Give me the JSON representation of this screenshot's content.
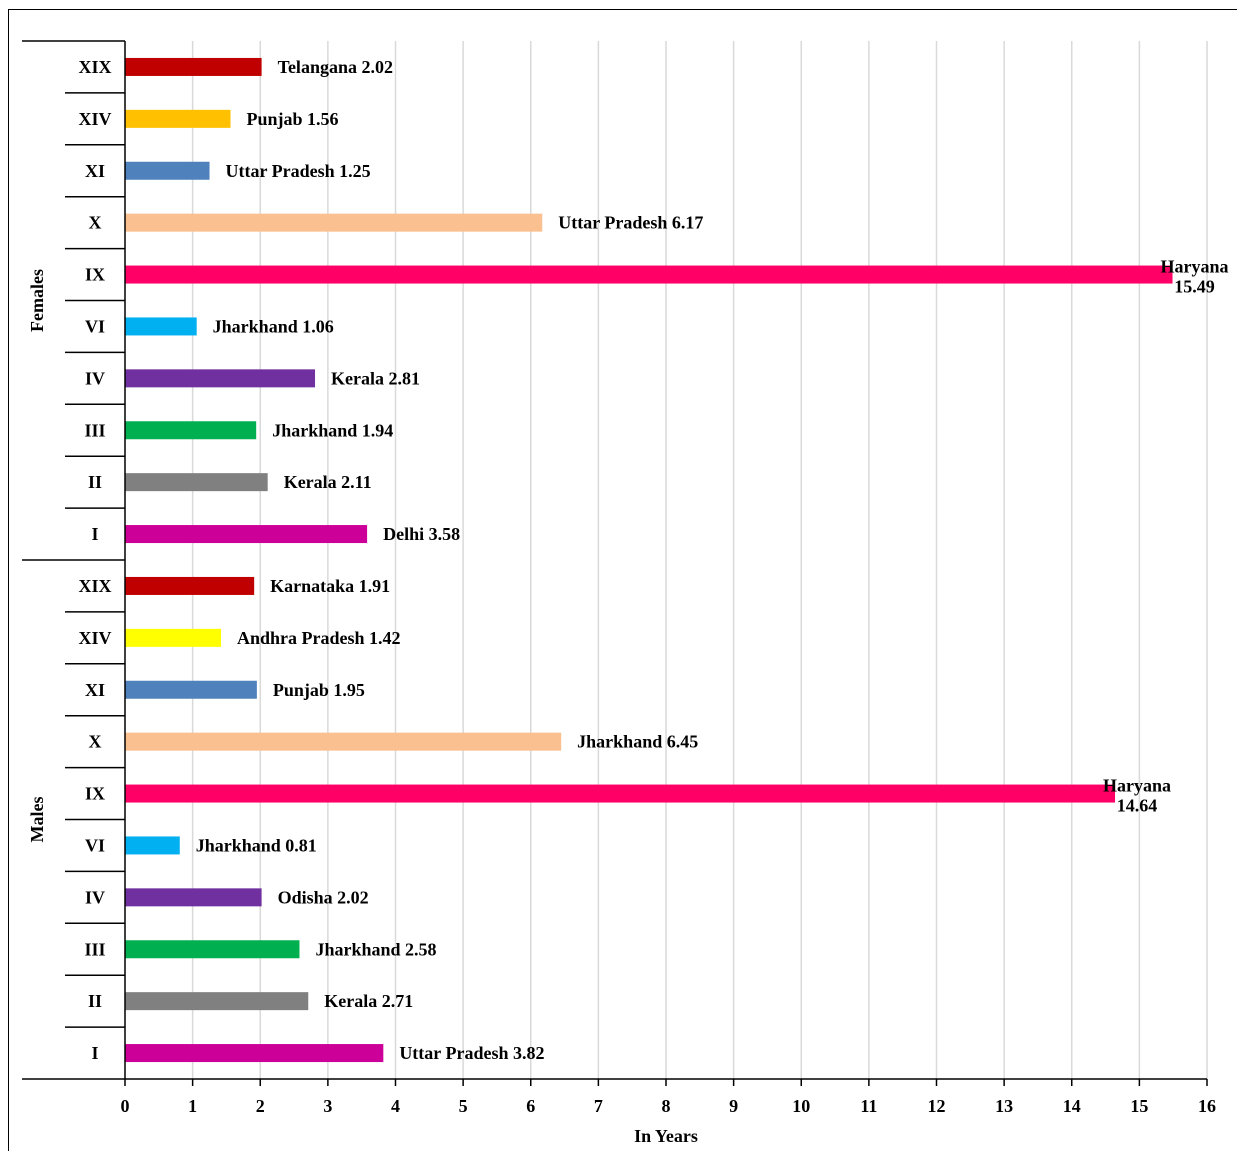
{
  "chart_data": {
    "type": "bar",
    "orientation": "horizontal",
    "xlabel": "In Years",
    "xlim": [
      0,
      16
    ],
    "xticks": [
      0,
      1,
      2,
      3,
      4,
      5,
      6,
      7,
      8,
      9,
      10,
      11,
      12,
      13,
      14,
      15,
      16
    ],
    "grid": true,
    "groups": [
      {
        "name": "Females",
        "categories": [
          "XIX",
          "XIV",
          "XI",
          "X",
          "IX",
          "VI",
          "IV",
          "III",
          "II",
          "I"
        ],
        "values": [
          2.02,
          1.56,
          1.25,
          6.17,
          15.49,
          1.06,
          2.81,
          1.94,
          2.11,
          3.58
        ],
        "labels": [
          "Telangana 2.02",
          "Punjab 1.56",
          "Uttar Pradesh 1.25",
          "Uttar Pradesh 6.17",
          "Haryana\n15.49",
          "Jharkhand 1.06",
          "Kerala 2.81",
          "Jharkhand 1.94",
          "Kerala 2.11",
          "Delhi 3.58"
        ],
        "colors": [
          "#c00000",
          "#ffc000",
          "#4f81bd",
          "#fac090",
          "#ff0066",
          "#00b0f0",
          "#7030a0",
          "#00b050",
          "#808080",
          "#cc0099"
        ]
      },
      {
        "name": "Males",
        "categories": [
          "XIX",
          "XIV",
          "XI",
          "X",
          "IX",
          "VI",
          "IV",
          "III",
          "II",
          "I"
        ],
        "values": [
          1.91,
          1.42,
          1.95,
          6.45,
          14.64,
          0.81,
          2.02,
          2.58,
          2.71,
          3.82
        ],
        "labels": [
          "Karnataka 1.91",
          "Andhra Pradesh 1.42",
          "Punjab 1.95",
          "Jharkhand 6.45",
          "Haryana\n14.64",
          "Jharkhand 0.81",
          "Odisha 2.02",
          "Jharkhand 2.58",
          "Kerala 2.71",
          "Uttar Pradesh 3.82"
        ],
        "colors": [
          "#c00000",
          "#ffff00",
          "#4f81bd",
          "#fac090",
          "#ff0066",
          "#00b0f0",
          "#7030a0",
          "#00b050",
          "#808080",
          "#cc0099"
        ]
      }
    ]
  }
}
